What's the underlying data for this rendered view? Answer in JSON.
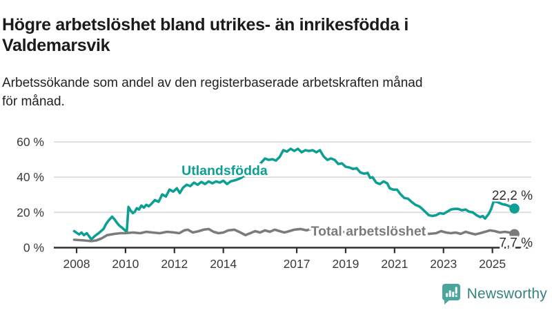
{
  "header": {
    "title_line1": "Högre arbetslöshet bland utrikes- än inrikesfödda i",
    "title_line2": "Valdemarsvik",
    "subtitle_line1": "Arbetssökande som andel av den registerbaserade arbetskraften månad",
    "subtitle_line2": "för månad."
  },
  "footer": {
    "brand": "Newsworthy",
    "logo_icon": "bar-chart-speech-bubble-icon"
  },
  "colors": {
    "teal": "#0d9e94",
    "gray": "#7b7b7e",
    "grid": "#d9d9d9",
    "axis": "#2f2f2f",
    "tick_text": "#3a3a3a",
    "value_text": "#2e2e2e",
    "logo_teal": "#4ba49e",
    "logo_text": "#36837e",
    "background": "#ffffff"
  },
  "chart_data": {
    "type": "line",
    "x_unit": "decimal_year",
    "xlim": [
      2007.75,
      2026.1
    ],
    "ylim": [
      0,
      60
    ],
    "grid": "horizontal-only",
    "yticks": [
      {
        "value": 0,
        "label": "0 %"
      },
      {
        "value": 20,
        "label": "20 %"
      },
      {
        "value": 40,
        "label": "40 %"
      },
      {
        "value": 60,
        "label": "60 %"
      }
    ],
    "xticks": [
      {
        "value": 2008,
        "label": "2008"
      },
      {
        "value": 2010,
        "label": "2010"
      },
      {
        "value": 2012,
        "label": "2012"
      },
      {
        "value": 2014,
        "label": "2014"
      },
      {
        "value": 2017,
        "label": "2017"
      },
      {
        "value": 2019,
        "label": "2019"
      },
      {
        "value": 2021,
        "label": "2021"
      },
      {
        "value": 2023,
        "label": "2023"
      },
      {
        "value": 2025,
        "label": "2025"
      }
    ],
    "series": [
      {
        "name": "Utlandsfödda",
        "color": "#0d9e94",
        "end_label": "22,2 %",
        "end_value": 22.2,
        "label_anchor": {
          "x": 2014.05,
          "y": 44.0
        },
        "points": [
          [
            2007.9,
            9.4
          ],
          [
            2008.1,
            7.5
          ],
          [
            2008.2,
            8.6
          ],
          [
            2008.3,
            7.1
          ],
          [
            2008.42,
            8.2
          ],
          [
            2008.6,
            4.7
          ],
          [
            2008.75,
            6.7
          ],
          [
            2008.9,
            8.2
          ],
          [
            2009.0,
            9.4
          ],
          [
            2009.1,
            10.6
          ],
          [
            2009.2,
            13.3
          ],
          [
            2009.3,
            15.3
          ],
          [
            2009.45,
            17.6
          ],
          [
            2009.55,
            16.1
          ],
          [
            2009.65,
            14.1
          ],
          [
            2009.75,
            12.5
          ],
          [
            2009.85,
            11.4
          ],
          [
            2009.95,
            10.2
          ],
          [
            2010.05,
            9.0
          ],
          [
            2010.12,
            23.1
          ],
          [
            2010.2,
            21.2
          ],
          [
            2010.3,
            19.6
          ],
          [
            2010.38,
            20.4
          ],
          [
            2010.46,
            22.4
          ],
          [
            2010.55,
            21.6
          ],
          [
            2010.65,
            23.9
          ],
          [
            2010.75,
            22.7
          ],
          [
            2010.85,
            24.3
          ],
          [
            2010.95,
            23.5
          ],
          [
            2011.05,
            24.7
          ],
          [
            2011.2,
            27.0
          ],
          [
            2011.35,
            26.0
          ],
          [
            2011.5,
            30.2
          ],
          [
            2011.65,
            29.0
          ],
          [
            2011.8,
            33.0
          ],
          [
            2011.95,
            31.8
          ],
          [
            2012.1,
            33.7
          ],
          [
            2012.22,
            31.0
          ],
          [
            2012.35,
            34.0
          ],
          [
            2012.5,
            35.7
          ],
          [
            2012.65,
            34.9
          ],
          [
            2012.8,
            36.9
          ],
          [
            2012.95,
            35.7
          ],
          [
            2013.1,
            37.3
          ],
          [
            2013.25,
            36.1
          ],
          [
            2013.4,
            37.6
          ],
          [
            2013.55,
            36.5
          ],
          [
            2013.7,
            37.6
          ],
          [
            2013.85,
            36.9
          ],
          [
            2014.0,
            38.0
          ],
          [
            2014.15,
            36.1
          ],
          [
            2014.3,
            37.6
          ],
          [
            2014.5,
            38.3
          ],
          [
            2014.7,
            39.4
          ],
          [
            2014.9,
            41.2
          ],
          [
            2015.1,
            43.4
          ],
          [
            2015.3,
            45.6
          ],
          [
            2015.5,
            47.5
          ],
          [
            2015.7,
            50.6
          ],
          [
            2015.85,
            49.8
          ],
          [
            2016.0,
            50.2
          ],
          [
            2016.15,
            49.4
          ],
          [
            2016.3,
            51.4
          ],
          [
            2016.45,
            55.3
          ],
          [
            2016.6,
            54.5
          ],
          [
            2016.75,
            56.1
          ],
          [
            2016.9,
            54.9
          ],
          [
            2017.05,
            56.1
          ],
          [
            2017.2,
            54.1
          ],
          [
            2017.35,
            55.3
          ],
          [
            2017.5,
            54.9
          ],
          [
            2017.65,
            55.3
          ],
          [
            2017.8,
            54.1
          ],
          [
            2017.95,
            55.3
          ],
          [
            2018.1,
            51.8
          ],
          [
            2018.25,
            49.8
          ],
          [
            2018.4,
            50.6
          ],
          [
            2018.55,
            49.8
          ],
          [
            2018.7,
            47.5
          ],
          [
            2018.85,
            47.8
          ],
          [
            2019.0,
            45.9
          ],
          [
            2019.15,
            45.5
          ],
          [
            2019.3,
            44.7
          ],
          [
            2019.45,
            45.1
          ],
          [
            2019.6,
            42.7
          ],
          [
            2019.75,
            42.0
          ],
          [
            2019.9,
            42.4
          ],
          [
            2020.0,
            39.6
          ],
          [
            2020.1,
            40.0
          ],
          [
            2020.25,
            36.9
          ],
          [
            2020.4,
            36.1
          ],
          [
            2020.55,
            37.6
          ],
          [
            2020.7,
            36.5
          ],
          [
            2020.8,
            33.7
          ],
          [
            2020.95,
            32.9
          ],
          [
            2021.1,
            32.9
          ],
          [
            2021.25,
            30.2
          ],
          [
            2021.4,
            28.2
          ],
          [
            2021.55,
            27.8
          ],
          [
            2021.7,
            25.9
          ],
          [
            2021.85,
            24.3
          ],
          [
            2022.0,
            23.5
          ],
          [
            2022.1,
            22.4
          ],
          [
            2022.25,
            20.4
          ],
          [
            2022.4,
            18.4
          ],
          [
            2022.55,
            18.0
          ],
          [
            2022.7,
            18.4
          ],
          [
            2022.85,
            19.6
          ],
          [
            2023.0,
            19.2
          ],
          [
            2023.15,
            20.4
          ],
          [
            2023.3,
            21.6
          ],
          [
            2023.45,
            22.0
          ],
          [
            2023.6,
            22.0
          ],
          [
            2023.75,
            21.2
          ],
          [
            2023.9,
            21.6
          ],
          [
            2024.05,
            20.4
          ],
          [
            2024.2,
            20.0
          ],
          [
            2024.35,
            18.4
          ],
          [
            2024.5,
            17.3
          ],
          [
            2024.6,
            18.0
          ],
          [
            2024.7,
            16.5
          ],
          [
            2024.85,
            19.2
          ],
          [
            2024.95,
            22.0
          ],
          [
            2025.05,
            26.3
          ],
          [
            2025.2,
            25.9
          ],
          [
            2025.4,
            24.7
          ],
          [
            2025.55,
            24.3
          ],
          [
            2025.7,
            23.5
          ],
          [
            2025.9,
            22.2
          ]
        ]
      },
      {
        "name": "Total arbetslöshet",
        "color": "#7b7b7e",
        "end_label": "7,7 %",
        "end_value": 7.7,
        "label_anchor": {
          "x": 2019.93,
          "y": 9.6
        },
        "points": [
          [
            2007.9,
            4.5
          ],
          [
            2008.1,
            4.3
          ],
          [
            2008.3,
            4.1
          ],
          [
            2008.45,
            3.9
          ],
          [
            2008.6,
            3.7
          ],
          [
            2008.8,
            4.1
          ],
          [
            2009.0,
            5.1
          ],
          [
            2009.25,
            7.1
          ],
          [
            2009.55,
            7.8
          ],
          [
            2009.8,
            8.2
          ],
          [
            2010.0,
            8.2
          ],
          [
            2010.3,
            8.6
          ],
          [
            2010.6,
            8.2
          ],
          [
            2010.85,
            9.0
          ],
          [
            2011.1,
            8.6
          ],
          [
            2011.4,
            8.2
          ],
          [
            2011.7,
            9.0
          ],
          [
            2012.0,
            8.6
          ],
          [
            2012.2,
            8.2
          ],
          [
            2012.4,
            9.8
          ],
          [
            2012.55,
            10.2
          ],
          [
            2012.75,
            8.6
          ],
          [
            2013.0,
            9.4
          ],
          [
            2013.2,
            10.2
          ],
          [
            2013.4,
            10.6
          ],
          [
            2013.6,
            9.0
          ],
          [
            2013.8,
            8.2
          ],
          [
            2014.0,
            8.6
          ],
          [
            2014.2,
            9.8
          ],
          [
            2014.45,
            10.2
          ],
          [
            2014.7,
            8.6
          ],
          [
            2014.9,
            7.1
          ],
          [
            2015.1,
            8.2
          ],
          [
            2015.3,
            9.4
          ],
          [
            2015.5,
            8.6
          ],
          [
            2015.7,
            9.8
          ],
          [
            2015.9,
            9.0
          ],
          [
            2016.1,
            10.2
          ],
          [
            2016.3,
            9.4
          ],
          [
            2016.5,
            8.6
          ],
          [
            2016.7,
            9.4
          ],
          [
            2016.9,
            10.2
          ],
          [
            2017.15,
            10.6
          ],
          [
            2017.4,
            9.8
          ],
          [
            2017.65,
            11.0
          ],
          [
            2017.9,
            10.2
          ],
          [
            2018.2,
            9.4
          ],
          [
            2018.5,
            9.8
          ],
          [
            2018.8,
            9.0
          ],
          [
            2019.1,
            8.6
          ],
          [
            2019.4,
            9.0
          ],
          [
            2019.7,
            8.6
          ],
          [
            2020.0,
            9.0
          ],
          [
            2020.3,
            9.8
          ],
          [
            2020.6,
            9.4
          ],
          [
            2020.9,
            9.0
          ],
          [
            2021.2,
            8.6
          ],
          [
            2021.5,
            8.2
          ],
          [
            2021.8,
            8.6
          ],
          [
            2022.1,
            8.2
          ],
          [
            2022.4,
            7.8
          ],
          [
            2022.7,
            8.2
          ],
          [
            2022.9,
            9.4
          ],
          [
            2023.1,
            8.6
          ],
          [
            2023.3,
            8.2
          ],
          [
            2023.5,
            8.6
          ],
          [
            2023.7,
            7.8
          ],
          [
            2023.9,
            9.0
          ],
          [
            2024.1,
            8.2
          ],
          [
            2024.3,
            7.5
          ],
          [
            2024.5,
            8.2
          ],
          [
            2024.7,
            9.0
          ],
          [
            2024.9,
            9.8
          ],
          [
            2025.1,
            9.4
          ],
          [
            2025.3,
            8.6
          ],
          [
            2025.5,
            9.0
          ],
          [
            2025.7,
            8.6
          ],
          [
            2025.9,
            7.7
          ]
        ]
      }
    ]
  }
}
